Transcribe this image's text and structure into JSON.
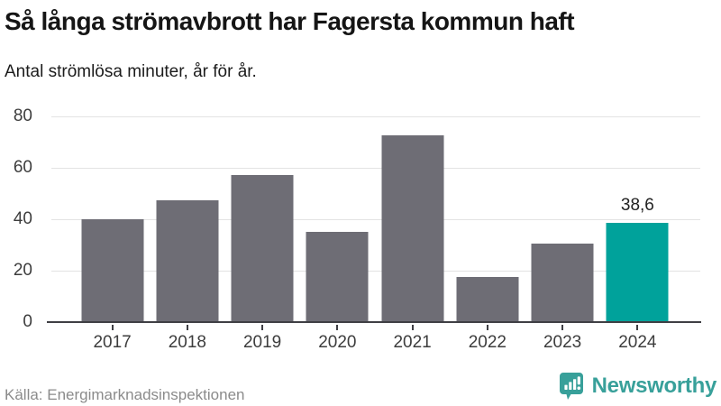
{
  "header": {
    "title": "Så långa strömavbrott har Fagersta kommun haft",
    "subtitle": "Antal strömlösa minuter, år för år."
  },
  "chart_data": {
    "type": "bar",
    "title": "Så långa strömavbrott har Fagersta kommun haft",
    "subtitle": "Antal strömlösa minuter, år för år.",
    "categories": [
      "2017",
      "2018",
      "2019",
      "2020",
      "2021",
      "2022",
      "2023",
      "2024"
    ],
    "values": [
      39.9,
      47.3,
      57.0,
      34.9,
      72.6,
      17.6,
      30.6,
      38.6
    ],
    "value_labels": [
      null,
      null,
      null,
      null,
      null,
      null,
      null,
      "38,6"
    ],
    "highlight_index": 7,
    "xlabel": "",
    "ylabel": "Antal strömlösa minuter",
    "ylim": [
      0,
      80
    ],
    "yticks": [
      0,
      20,
      40,
      60,
      80
    ],
    "grid": true,
    "legend": "none",
    "bar_color": "#6e6d75",
    "highlight_color": "#00a29b"
  },
  "footer": {
    "source": "Källa: Energimarknadsinspektionen",
    "brand": {
      "name": "Newsworthy",
      "icon": "bar-chart-bubble-icon",
      "color": "#38a09a"
    }
  }
}
